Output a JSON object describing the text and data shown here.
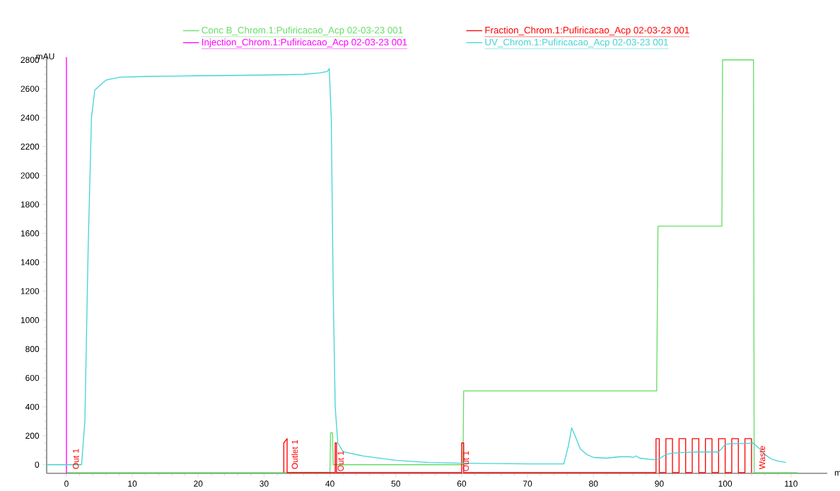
{
  "chart_data": {
    "type": "line",
    "xlabel": "m",
    "ylabel": "mAU",
    "xlim": [
      -3,
      115.5
    ],
    "ylim": [
      -60,
      2820
    ],
    "xticks": [
      0,
      10,
      20,
      30,
      40,
      50,
      60,
      70,
      80,
      90,
      100,
      110
    ],
    "yticks": [
      0,
      200,
      400,
      600,
      800,
      1000,
      1200,
      1400,
      1600,
      1800,
      2000,
      2200,
      2400,
      2600,
      2800
    ],
    "grid": false,
    "legend": "top",
    "marker": "none",
    "line_style": "solid",
    "series": [
      {
        "name": "Conc B_Chrom.1:Pufiricacao_Acp 02-03-23 001",
        "color": "#66dd66",
        "x": [
          0,
          40,
          40.1,
          40.4,
          40.5,
          60.2,
          60.3,
          89.6,
          89.8,
          99.5,
          99.6,
          104.3,
          104.4,
          111
        ],
        "values": [
          -55,
          -55,
          220,
          220,
          0,
          0,
          510,
          510,
          1650,
          1650,
          2800,
          2800,
          -55,
          -55
        ]
      },
      {
        "name": "Fraction_Chrom.1:Pufiricacao_Acp 02-03-23 001",
        "color": "#ff0000",
        "x": [
          33,
          33,
          33.5,
          33.5,
          40.8,
          40.8,
          41,
          41,
          60,
          60,
          60.3,
          60.3,
          89.5,
          89.5,
          90,
          90,
          91,
          91,
          92,
          92,
          93,
          93,
          94,
          94,
          95,
          95,
          96,
          96,
          97,
          97,
          98,
          98,
          99,
          99,
          100,
          100,
          101,
          101,
          102,
          102,
          103,
          103,
          104,
          104
        ],
        "values": [
          -55,
          150,
          180,
          -55,
          -55,
          150,
          150,
          -55,
          -55,
          150,
          150,
          -55,
          -55,
          180,
          180,
          -55,
          -55,
          180,
          180,
          -55,
          -55,
          180,
          180,
          -55,
          -55,
          180,
          180,
          -55,
          -55,
          180,
          180,
          -55,
          -55,
          180,
          180,
          -55,
          -55,
          180,
          180,
          -55,
          -55,
          180,
          180,
          -55
        ]
      },
      {
        "name": "Injection_Chrom.1:Pufiricacao_Acp 02-03-23 001",
        "color": "#ff00ff",
        "x": [
          0,
          0
        ],
        "values": [
          -60,
          2820
        ]
      },
      {
        "name": "UV_Chrom.1:Pufiricacao_Acp 02-03-23 001",
        "color": "#44d4d4",
        "x": [
          -3,
          2.3,
          2.8,
          3.3,
          3.8,
          4.3,
          5.0,
          6.0,
          8.0,
          12,
          20,
          30,
          36,
          38.5,
          39.6,
          39.9,
          40.2,
          40.5,
          40.8,
          41.2,
          42,
          45,
          50,
          55,
          60,
          70,
          75.5,
          76.2,
          76.7,
          77.3,
          78,
          79,
          80,
          82,
          84,
          85.5,
          86,
          86.5,
          87,
          89,
          90,
          91,
          92,
          94,
          96,
          99,
          100,
          101,
          103,
          104.2,
          105,
          106,
          107,
          108,
          109.2
        ],
        "values": [
          0,
          0,
          300,
          1500,
          2400,
          2590,
          2620,
          2660,
          2680,
          2685,
          2690,
          2695,
          2700,
          2710,
          2720,
          2740,
          2400,
          1200,
          400,
          150,
          90,
          60,
          30,
          15,
          10,
          5,
          5,
          130,
          254,
          190,
          110,
          70,
          50,
          45,
          55,
          55,
          50,
          60,
          45,
          35,
          40,
          70,
          80,
          85,
          88,
          88,
          140,
          146,
          146,
          150,
          120,
          70,
          40,
          25,
          15
        ]
      }
    ],
    "annotations": [
      {
        "text": "Out 1",
        "x": 0.8,
        "y": -40
      },
      {
        "text": "Outlet 1",
        "x": 34.0,
        "y": -40
      },
      {
        "text": "Out 1",
        "x": 41,
        "y": -55
      },
      {
        "text": "Out 1",
        "x": 60,
        "y": -55
      },
      {
        "text": "Waste",
        "x": 105.0,
        "y": -40
      }
    ]
  }
}
